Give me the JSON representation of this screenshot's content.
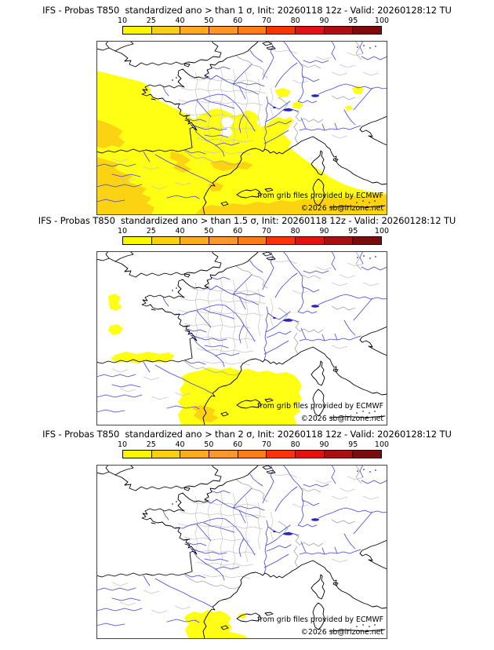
{
  "panels": [
    {
      "title": "IFS - Probas T850  standardized ano > than 1 σ, Init: 20260118 12z - Valid: 20260128:12 TU",
      "threshold": "1 σ"
    },
    {
      "title": "IFS - Probas T850  standardized ano > than 1.5 σ, Init: 20260118 12z - Valid: 20260128:12 TU",
      "threshold": "1.5 σ"
    },
    {
      "title": "IFS - Probas T850  standardized ano > than 2 σ, Init: 20260118 12z - Valid: 20260128:12 TU",
      "threshold": "2 σ"
    }
  ],
  "colorbar": {
    "ticks": [
      "10",
      "25",
      "40",
      "50",
      "60",
      "70",
      "80",
      "90",
      "95",
      "100"
    ],
    "colors": [
      "#FBF500",
      "#FCCF12",
      "#FFAB1E",
      "#FF9628",
      "#FF7D12",
      "#FB3408",
      "#E31210",
      "#AE0E0E",
      "#7C0C0C"
    ]
  },
  "map": {
    "attribution_line1": "from grib files provided by ECMWF",
    "attribution_line2": "©2026 sb@irizone.net"
  },
  "colors": {
    "prob_10_25": "#FFFF14",
    "prob_25_40": "#FBD312",
    "coastline": "#000000",
    "river": "#4545E0",
    "department_border": "#C6C6C6",
    "country_border": "#A8A8A8",
    "lake": "#2626B8",
    "frame": "#444444"
  }
}
